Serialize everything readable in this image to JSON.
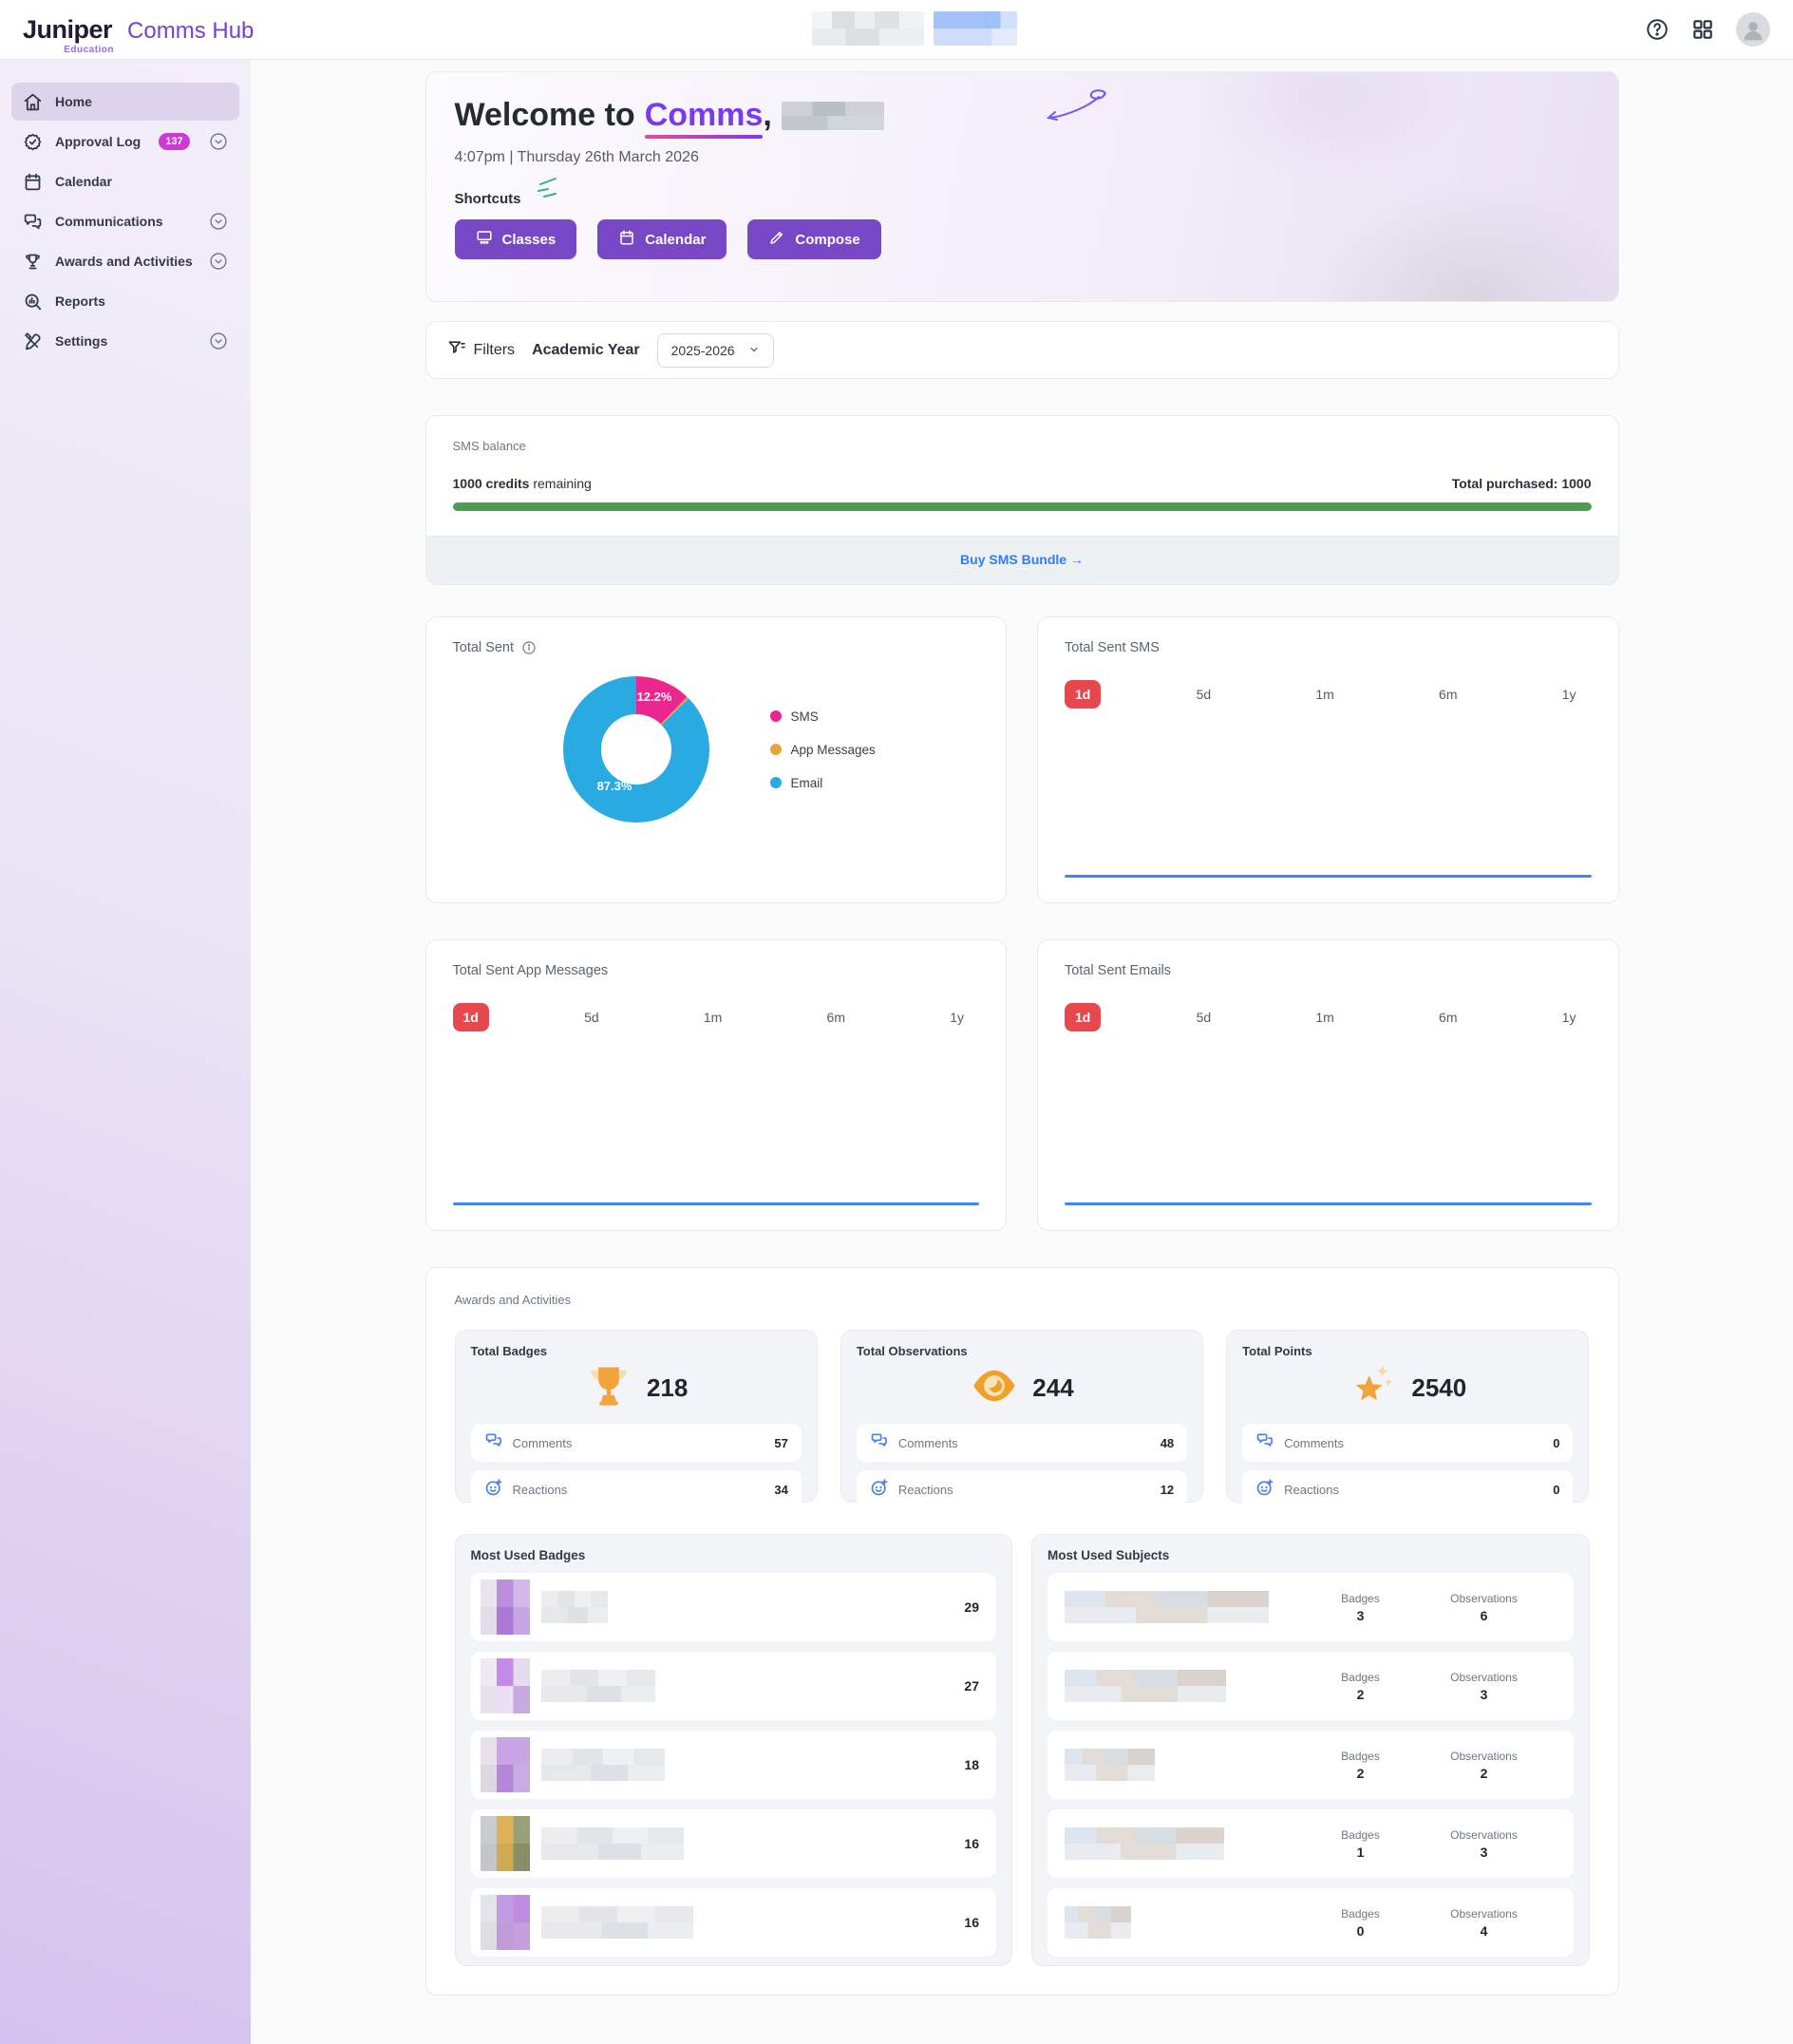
{
  "header": {
    "brand": "Juniper",
    "brand_sub": "Education",
    "app_title": "Comms Hub"
  },
  "sidebar": {
    "items": [
      {
        "label": "Home"
      },
      {
        "label": "Approval Log",
        "badge": "137"
      },
      {
        "label": "Calendar"
      },
      {
        "label": "Communications"
      },
      {
        "label": "Awards and Activities"
      },
      {
        "label": "Reports"
      },
      {
        "label": "Settings"
      }
    ]
  },
  "welcome": {
    "title_prefix": "Welcome to",
    "title_highlight": "Comms",
    "title_comma": ",",
    "datetime": "4:07pm | Thursday 26th March 2026",
    "shortcuts_label": "Shortcuts",
    "buttons": [
      {
        "label": "Classes"
      },
      {
        "label": "Calendar"
      },
      {
        "label": "Compose"
      }
    ]
  },
  "filters": {
    "label": "Filters",
    "field_label": "Academic Year",
    "selected_value": "2025-2026"
  },
  "sms_balance": {
    "title": "SMS balance",
    "remaining_value": "1000 credits",
    "remaining_suffix": " remaining",
    "total_purchased": "Total purchased: 1000",
    "progress_pct": 100,
    "cta_label": "Buy SMS Bundle",
    "cta_arrow": "→"
  },
  "chart_data": [
    {
      "type": "pie",
      "donut": true,
      "title": "Total Sent",
      "legend_position": "right",
      "segments": [
        {
          "name": "SMS",
          "pct": 12.2,
          "color": "#EC268F",
          "label": "12.2%"
        },
        {
          "name": "App Messages",
          "pct": 0.5,
          "color": "#E8A33D",
          "label": ""
        },
        {
          "name": "Email",
          "pct": 87.3,
          "color": "#29ABE2",
          "label": "87.3%"
        }
      ]
    },
    {
      "type": "line",
      "title": "Total Sent SMS",
      "series": [
        {
          "name": "SMS sent (1d)",
          "values": [
            0,
            0
          ]
        }
      ],
      "line_color": "#4584F4",
      "shape": "flat"
    },
    {
      "type": "line",
      "title": "Total Sent App Messages",
      "series": [
        {
          "name": "App messages sent (1d)",
          "values": [
            0,
            0
          ]
        }
      ],
      "line_color": "#4584F4",
      "shape": "flat"
    },
    {
      "type": "line",
      "title": "Total Sent Emails",
      "series": [
        {
          "name": "Emails sent (1d)",
          "values": [
            0,
            0
          ]
        }
      ],
      "line_color": "#4584F4",
      "shape": "flat"
    }
  ],
  "total_sent_card": {
    "title": "Total Sent"
  },
  "ts_cards": [
    {
      "title": "Total Sent SMS",
      "ranges": [
        "1d",
        "5d",
        "1m",
        "6m",
        "1y"
      ],
      "active_range": "1d"
    },
    {
      "title": "Total Sent App Messages",
      "ranges": [
        "1d",
        "5d",
        "1m",
        "6m",
        "1y"
      ],
      "active_range": "1d"
    },
    {
      "title": "Total Sent Emails",
      "ranges": [
        "1d",
        "5d",
        "1m",
        "6m",
        "1y"
      ],
      "active_range": "1d"
    }
  ],
  "awards": {
    "section_title": "Awards and Activities",
    "comments_label": "Comments",
    "reactions_label": "Reactions",
    "stats": [
      {
        "title": "Total Badges",
        "value": "218",
        "icon": "trophy-icon",
        "comments": "57",
        "reactions": "34"
      },
      {
        "title": "Total Observations",
        "value": "244",
        "icon": "eye-icon",
        "comments": "48",
        "reactions": "12"
      },
      {
        "title": "Total Points",
        "value": "2540",
        "icon": "star-icon",
        "comments": "0",
        "reactions": "0"
      }
    ],
    "most_used_badges": {
      "title": "Most Used Badges",
      "rows": [
        {
          "count": "29"
        },
        {
          "count": "27"
        },
        {
          "count": "18"
        },
        {
          "count": "16"
        },
        {
          "count": "16"
        }
      ]
    },
    "most_used_subjects": {
      "title": "Most Used Subjects",
      "badges_label": "Badges",
      "observations_label": "Observations",
      "rows": [
        {
          "badges": "3",
          "observations": "6"
        },
        {
          "badges": "2",
          "observations": "3"
        },
        {
          "badges": "2",
          "observations": "2"
        },
        {
          "badges": "1",
          "observations": "3"
        },
        {
          "badges": "0",
          "observations": "4"
        }
      ]
    }
  },
  "colors": {
    "brand_purple": "#7A3FD1",
    "button_purple": "#7847C6",
    "active_range_red": "#E8474E",
    "progress_green": "#4E9B51",
    "link_blue": "#2F7DF6",
    "line_blue": "#4584F4",
    "badge_magenta": "#CB3AD2"
  }
}
